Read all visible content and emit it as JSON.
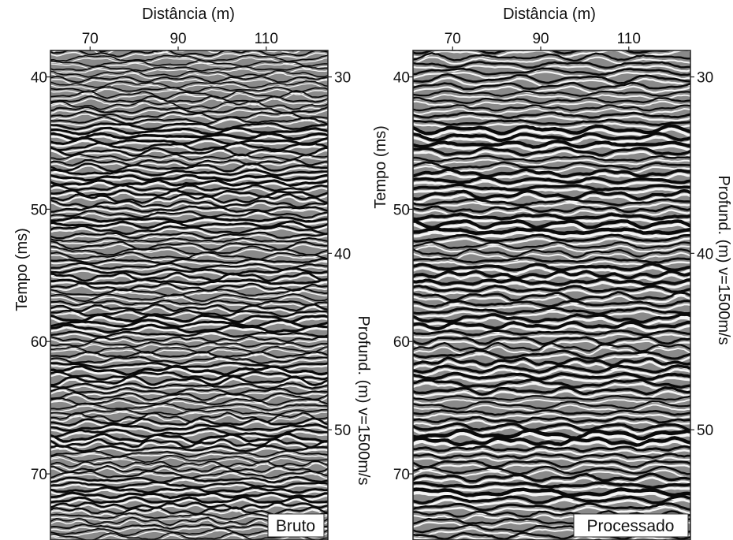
{
  "chart_data": [
    {
      "type": "heatmap",
      "subtype": "seismic-section",
      "panel_label": "Bruto",
      "xlabel": "Distância (m)",
      "ylabel": "Tempo (ms)",
      "y2label": "Profund. (m) v=1500m/s",
      "xlim": [
        61,
        124
      ],
      "ylim": [
        38,
        75
      ],
      "y2lim": [
        28.5,
        56.25
      ],
      "xticks": [
        70,
        90,
        110
      ],
      "yticks": [
        40,
        50,
        60,
        70
      ],
      "y2ticks": [
        30,
        40,
        50
      ],
      "colormap": "grayscale",
      "variant": "raw",
      "reflectors_ms": [
        44.5,
        48,
        51.2,
        55,
        58.5,
        62.5,
        67,
        71.5
      ]
    },
    {
      "type": "heatmap",
      "subtype": "seismic-section",
      "panel_label": "Processado",
      "xlabel": "Distância (m)",
      "ylabel": "Tempo (ms)",
      "y2label": "Profund. (m) v=1500m/s",
      "xlim": [
        61,
        124
      ],
      "ylim": [
        38,
        75
      ],
      "y2lim": [
        28.5,
        56.25
      ],
      "xticks": [
        70,
        90,
        110
      ],
      "yticks": [
        40,
        50,
        60,
        70
      ],
      "y2ticks": [
        30,
        40,
        50
      ],
      "colormap": "grayscale",
      "variant": "processed",
      "reflectors_ms": [
        44.5,
        48,
        51.2,
        55,
        58.5,
        62.5,
        67,
        71.5
      ]
    }
  ]
}
